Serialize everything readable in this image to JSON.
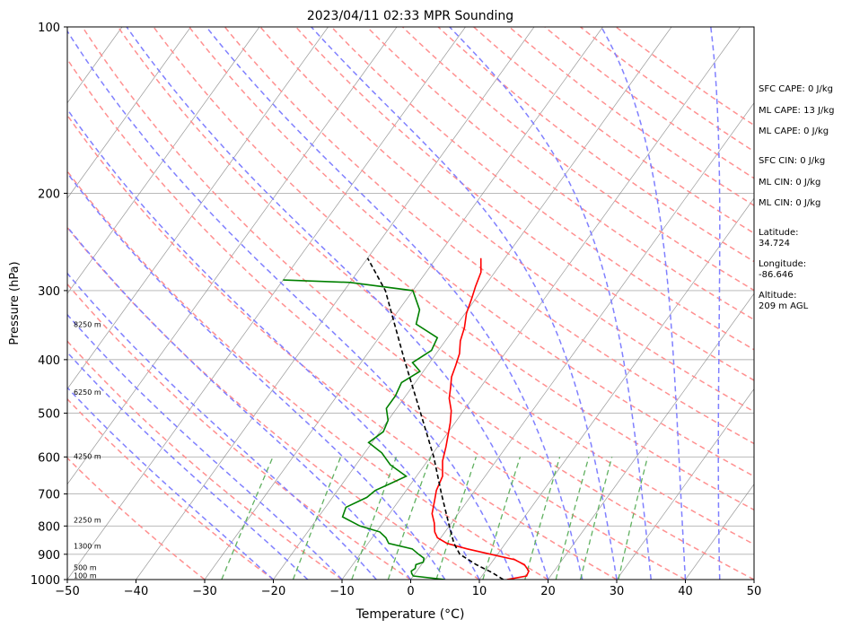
{
  "chart_data": {
    "type": "line",
    "title": "2023/04/11 02:33 MPR Sounding",
    "xlabel": "Temperature (°C)",
    "ylabel": "Pressure (hPa)",
    "xlim": [
      -50,
      50
    ],
    "ylim": [
      1000,
      100
    ],
    "y_scale": "log",
    "x_ticks": [
      "−50",
      "−40",
      "−30",
      "−20",
      "−10",
      "0",
      "10",
      "20",
      "30",
      "40",
      "50"
    ],
    "y_ticks": [
      "100",
      "200",
      "300",
      "400",
      "500",
      "600",
      "700",
      "800",
      "900",
      "1000"
    ],
    "height_labels": [
      {
        "p": 983,
        "label": "100 m"
      },
      {
        "p": 950,
        "label": "500 m"
      },
      {
        "p": 870,
        "label": "1300 m"
      },
      {
        "p": 780,
        "label": "2250 m"
      },
      {
        "p": 598,
        "label": "4250 m"
      },
      {
        "p": 458,
        "label": "6250 m"
      },
      {
        "p": 345,
        "label": "8250 m"
      }
    ],
    "series": [
      {
        "color": "#ff0000",
        "values": [
          [
            1000,
            14
          ],
          [
            985,
            16.5
          ],
          [
            965,
            16.3
          ],
          [
            940,
            15
          ],
          [
            920,
            13
          ],
          [
            900,
            9
          ],
          [
            880,
            5
          ],
          [
            860,
            1.5
          ],
          [
            840,
            -0.5
          ],
          [
            820,
            -1.5
          ],
          [
            790,
            -2.5
          ],
          [
            760,
            -3.8
          ],
          [
            720,
            -4.8
          ],
          [
            690,
            -5.6
          ],
          [
            650,
            -6.2
          ],
          [
            610,
            -7.8
          ],
          [
            575,
            -8.8
          ],
          [
            545,
            -9.8
          ],
          [
            520,
            -10.7
          ],
          [
            495,
            -11.8
          ],
          [
            470,
            -13.4
          ],
          [
            450,
            -14.3
          ],
          [
            430,
            -15.3
          ],
          [
            410,
            -15.9
          ],
          [
            390,
            -16.6
          ],
          [
            370,
            -17.8
          ],
          [
            350,
            -18.6
          ],
          [
            330,
            -19.8
          ],
          [
            310,
            -20.6
          ],
          [
            295,
            -21.3
          ],
          [
            278,
            -22
          ],
          [
            262,
            -23.5
          ]
        ]
      },
      {
        "color": "#008000",
        "values": [
          [
            1000,
            5
          ],
          [
            985,
            0
          ],
          [
            975,
            -0.5
          ],
          [
            965,
            -0.8
          ],
          [
            955,
            -0.5
          ],
          [
            940,
            -0.8
          ],
          [
            930,
            0
          ],
          [
            915,
            -0.3
          ],
          [
            900,
            -1.5
          ],
          [
            880,
            -3
          ],
          [
            860,
            -7
          ],
          [
            840,
            -8
          ],
          [
            820,
            -9.5
          ],
          [
            800,
            -13
          ],
          [
            770,
            -16.5
          ],
          [
            740,
            -17
          ],
          [
            710,
            -15
          ],
          [
            690,
            -14.5
          ],
          [
            670,
            -13
          ],
          [
            650,
            -11.5
          ],
          [
            620,
            -15
          ],
          [
            590,
            -17.5
          ],
          [
            565,
            -20.5
          ],
          [
            540,
            -19.5
          ],
          [
            515,
            -20
          ],
          [
            490,
            -21.5
          ],
          [
            465,
            -21.5
          ],
          [
            440,
            -22
          ],
          [
            420,
            -20.5
          ],
          [
            405,
            -22.5
          ],
          [
            385,
            -21
          ],
          [
            365,
            -21.5
          ],
          [
            345,
            -26
          ],
          [
            325,
            -27
          ],
          [
            300,
            -30
          ],
          [
            290,
            -40
          ],
          [
            287,
            -50
          ]
        ]
      },
      {
        "color": "#000000",
        "values": [
          [
            1000,
            13.5
          ],
          [
            970,
            11
          ],
          [
            940,
            8
          ],
          [
            900,
            4.5
          ],
          [
            860,
            2.5
          ],
          [
            800,
            0
          ],
          [
            700,
            -4.5
          ],
          [
            600,
            -9.5
          ],
          [
            500,
            -16
          ],
          [
            400,
            -24
          ],
          [
            300,
            -34
          ],
          [
            262,
            -40
          ]
        ]
      }
    ]
  },
  "annotations": {
    "sfc_cape": "SFC CAPE: 0 J/kg",
    "ml_cape_1": "ML CAPE: 13 J/kg",
    "ml_cape_2": "ML CAPE: 0 J/kg",
    "sfc_cin": "SFC CIN: 0 J/kg",
    "ml_cin_1": "ML CIN: 0 J/kg",
    "ml_cin_2": "ML CIN: 0 J/kg",
    "latitude_label": "Latitude:",
    "latitude_value": "34.724",
    "longitude_label": "Longitude:",
    "longitude_value": "-86.646",
    "altitude_label": "Altitude:",
    "altitude_value": "209 m AGL"
  },
  "colors": {
    "temperature": "#ff0000",
    "dewpoint": "#008000",
    "parcel": "#000000",
    "dry_adiabats": "#ff9090",
    "moist_adiabats": "#8080ff",
    "mixing_ratio": "#60b060",
    "isotherms": "#808080"
  }
}
